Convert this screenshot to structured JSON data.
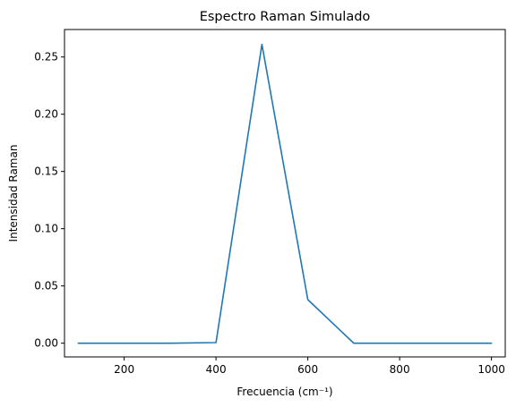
{
  "colors": {
    "series": "#1f77b4",
    "background": "#ffffff"
  },
  "chart_data": {
    "type": "line",
    "title": "Espectro Raman Simulado",
    "xlabel": "Frecuencia (cm⁻¹)",
    "ylabel": "Intensidad Raman",
    "xlim": [
      70,
      1030
    ],
    "ylim": [
      -0.012,
      0.274
    ],
    "xticks": [
      200,
      400,
      600,
      800,
      1000
    ],
    "yticks": [
      0.0,
      0.05,
      0.1,
      0.15,
      0.2,
      0.25
    ],
    "grid": false,
    "series": [
      {
        "x": [
          100,
          200,
          300,
          400,
          500,
          600,
          700,
          800,
          900,
          1000
        ],
        "y": [
          0.0,
          0.0,
          0.0,
          0.0005,
          0.261,
          0.038,
          0.0,
          0.0,
          0.0,
          0.0
        ]
      }
    ]
  }
}
